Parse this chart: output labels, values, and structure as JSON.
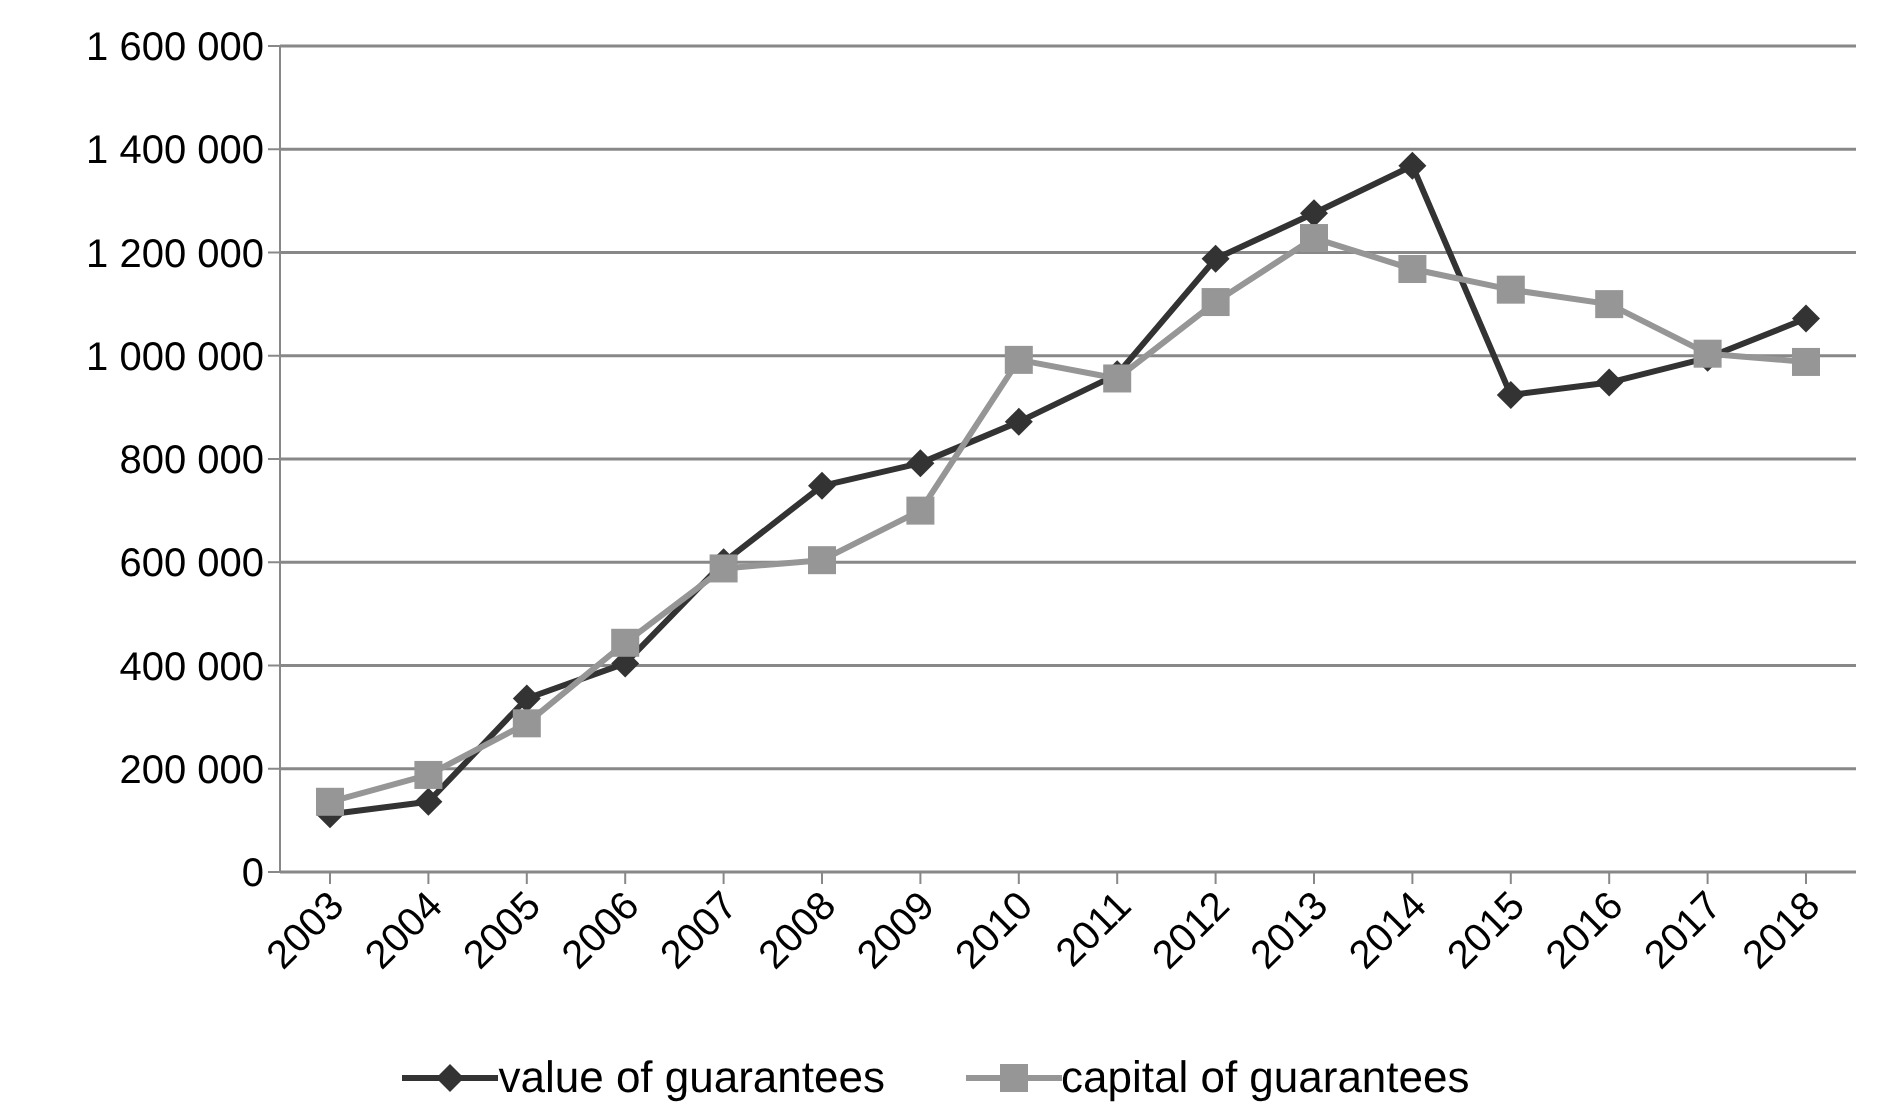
{
  "chart_data": {
    "type": "line",
    "categories": [
      "2003",
      "2004",
      "2005",
      "2006",
      "2007",
      "2008",
      "2009",
      "2010",
      "2011",
      "2012",
      "2013",
      "2014",
      "2015",
      "2016",
      "2017",
      "2018"
    ],
    "series": [
      {
        "name": "value of guarantees",
        "color": "#333333",
        "marker": "diamond",
        "values": [
          112000,
          136000,
          336000,
          404000,
          600000,
          748000,
          792000,
          872000,
          964000,
          1188000,
          1276000,
          1368000,
          924000,
          948000,
          996000,
          1072000
        ]
      },
      {
        "name": "capital of guarantees",
        "color": "#969696",
        "marker": "square",
        "values": [
          136000,
          188000,
          288000,
          444000,
          588000,
          604000,
          700000,
          992000,
          956000,
          1104000,
          1228000,
          1168000,
          1128000,
          1100000,
          1004000,
          988000
        ]
      }
    ],
    "ylim": [
      0,
      1600000
    ],
    "yticks": [
      {
        "value": 0,
        "label": "0"
      },
      {
        "value": 200000,
        "label": "200 000"
      },
      {
        "value": 400000,
        "label": "400 000"
      },
      {
        "value": 600000,
        "label": "600 000"
      },
      {
        "value": 800000,
        "label": "800 000"
      },
      {
        "value": 1000000,
        "label": "1 000 000"
      },
      {
        "value": 1200000,
        "label": "1 200 000"
      },
      {
        "value": 1400000,
        "label": "1 400 000"
      },
      {
        "value": 1600000,
        "label": "1 600 000"
      }
    ],
    "grid": "y",
    "legend": "bottom",
    "line_style": "solid"
  }
}
